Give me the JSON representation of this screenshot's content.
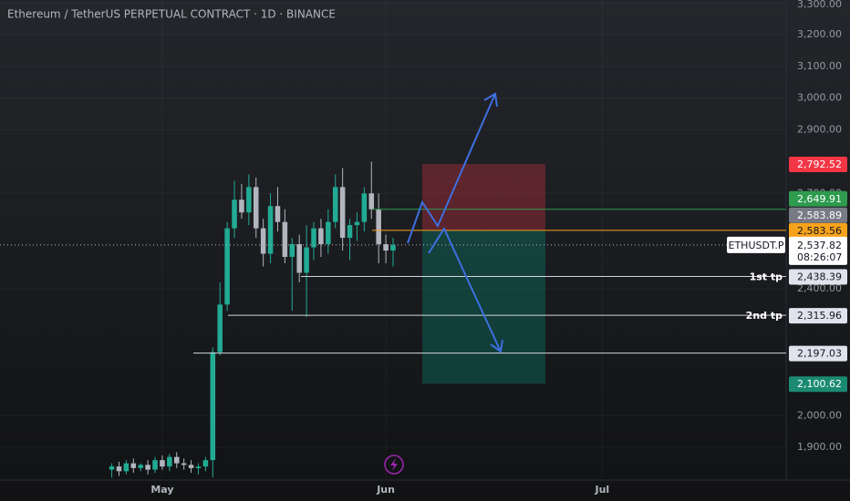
{
  "chart_data": {
    "type": "candlestick",
    "title": "Ethereum / TetherUS PERPETUAL CONTRACT · 1D · BINANCE",
    "categories": [
      null,
      null,
      null,
      null,
      null,
      null,
      null,
      null,
      null,
      null,
      null,
      null,
      null,
      null,
      null,
      null,
      null,
      null,
      null,
      null,
      null,
      null,
      "May",
      null,
      null,
      null,
      null,
      null,
      null,
      null,
      null,
      null,
      null,
      null,
      null,
      null,
      null,
      null,
      null,
      null,
      null,
      null,
      null,
      null,
      null,
      null,
      null,
      null,
      null,
      null,
      null,
      null,
      null,
      "Jun",
      null,
      null,
      null,
      null,
      null,
      null,
      null,
      null,
      null,
      null,
      null,
      null,
      null,
      null,
      null,
      null,
      null,
      null,
      null,
      null,
      null,
      null,
      null,
      null,
      null,
      null,
      null,
      null,
      null,
      "Jul",
      null,
      null,
      null,
      null,
      null,
      null,
      null,
      null,
      null,
      null,
      null,
      null,
      null,
      null,
      null,
      null,
      null,
      null,
      null,
      null,
      null,
      null,
      null,
      null,
      null
    ],
    "open": [
      null,
      null,
      null,
      null,
      null,
      null,
      null,
      null,
      null,
      null,
      null,
      null,
      null,
      null,
      null,
      1830,
      1840,
      1825,
      1850,
      1835,
      1845,
      1830,
      1860,
      1840,
      1870,
      1850,
      1845,
      1835,
      1840,
      1860,
      2200,
      2350,
      2590,
      2680,
      2640,
      2720,
      2590,
      2510,
      2660,
      2610,
      2500,
      2540,
      2450,
      2530,
      2590,
      2540,
      2610,
      2720,
      2560,
      2600,
      2610,
      2700,
      2650,
      2540,
      2520,
      null,
      null,
      null,
      null,
      null,
      null,
      null,
      null,
      null,
      null,
      null,
      null,
      null,
      null,
      null,
      null,
      null,
      null,
      null,
      null,
      null,
      null,
      null,
      null,
      null,
      null,
      null,
      null,
      null,
      null,
      null,
      null,
      null,
      null,
      null,
      null,
      null,
      null,
      null,
      null,
      null,
      null,
      null,
      null,
      null,
      null,
      null,
      null,
      null,
      null,
      null,
      null,
      null,
      null
    ],
    "high": [
      null,
      null,
      null,
      null,
      null,
      null,
      null,
      null,
      null,
      null,
      null,
      null,
      null,
      null,
      null,
      1850,
      1855,
      1860,
      1865,
      1850,
      1860,
      1870,
      1875,
      1880,
      1885,
      1865,
      1860,
      1850,
      1870,
      2215,
      2420,
      2610,
      2740,
      2730,
      2760,
      2750,
      2620,
      2700,
      2720,
      2650,
      2560,
      2570,
      2600,
      2610,
      2620,
      2650,
      2760,
      2780,
      2620,
      2640,
      2720,
      2800,
      2700,
      2570,
      2560,
      null,
      null,
      null,
      null,
      null,
      null,
      null,
      null,
      null,
      null,
      null,
      null,
      null,
      null,
      null,
      null,
      null,
      null,
      null,
      null,
      null,
      null,
      null,
      null,
      null,
      null,
      null,
      null,
      null,
      null,
      null,
      null,
      null,
      null,
      null,
      null,
      null,
      null,
      null,
      null,
      null,
      null,
      null,
      null,
      null,
      null,
      null,
      null,
      null,
      null,
      null,
      null,
      null,
      null
    ],
    "low": [
      null,
      null,
      null,
      null,
      null,
      null,
      null,
      null,
      null,
      null,
      null,
      null,
      null,
      null,
      null,
      1805,
      1810,
      1815,
      1820,
      1825,
      1815,
      1820,
      1830,
      1825,
      1835,
      1830,
      1820,
      1815,
      1825,
      1805,
      2190,
      2330,
      2560,
      2620,
      2600,
      2560,
      2470,
      2480,
      2580,
      2480,
      2330,
      2420,
      2310,
      2490,
      2500,
      2510,
      2590,
      2520,
      2490,
      2550,
      2580,
      2620,
      2480,
      2480,
      2470,
      null,
      null,
      null,
      null,
      null,
      null,
      null,
      null,
      null,
      null,
      null,
      null,
      null,
      null,
      null,
      null,
      null,
      null,
      null,
      null,
      null,
      null,
      null,
      null,
      null,
      null,
      null,
      null,
      null,
      null,
      null,
      null,
      null,
      null,
      null,
      null,
      null,
      null,
      null,
      null,
      null,
      null,
      null,
      null,
      null,
      null,
      null,
      null,
      null,
      null,
      null,
      null,
      null,
      null
    ],
    "close": [
      null,
      null,
      null,
      null,
      null,
      null,
      null,
      null,
      null,
      null,
      null,
      null,
      null,
      null,
      null,
      1840,
      1825,
      1850,
      1835,
      1845,
      1830,
      1860,
      1840,
      1870,
      1850,
      1845,
      1835,
      1840,
      1860,
      2200,
      2350,
      2590,
      2680,
      2640,
      2720,
      2590,
      2510,
      2660,
      2610,
      2500,
      2540,
      2450,
      2530,
      2590,
      2540,
      2610,
      2720,
      2560,
      2600,
      2610,
      2700,
      2650,
      2540,
      2520,
      2537.82,
      null,
      null,
      null,
      null,
      null,
      null,
      null,
      null,
      null,
      null,
      null,
      null,
      null,
      null,
      null,
      null,
      null,
      null,
      null,
      null,
      null,
      null,
      null,
      null,
      null,
      null,
      null,
      null,
      null,
      null,
      null,
      null,
      null,
      null,
      null,
      null,
      null,
      null,
      null,
      null,
      null,
      null,
      null,
      null,
      null,
      null,
      null,
      null,
      null,
      null,
      null,
      null,
      null,
      null
    ],
    "up_color": "#22ab94",
    "down_color": "#b2b5be",
    "ylim": [
      1803,
      3309
    ],
    "yticks": [
      {
        "value": 3300,
        "label": "3,300.00"
      },
      {
        "value": 3200,
        "label": "3,200.00"
      },
      {
        "value": 3100,
        "label": "3,100.00"
      },
      {
        "value": 3000,
        "label": "3,000.00"
      },
      {
        "value": 2900,
        "label": "2,900.00"
      },
      {
        "value": 2700,
        "label": "2,700.00"
      },
      {
        "value": 2400,
        "label": "2,400.00"
      },
      {
        "value": 2000,
        "label": "2,000.00"
      },
      {
        "value": 1900,
        "label": "1,900.00"
      }
    ],
    "grid": true,
    "price_levels": [
      {
        "price": {
          "value": 2792.52,
          "label": "2,792.52"
        },
        "color": "#f23645"
      },
      {
        "price": {
          "value": 2649.91,
          "label": "2,649.91"
        },
        "color": "#2e9b4f"
      },
      {
        "price": {
          "value": 2583.89,
          "label": "2,583.89"
        },
        "color": "#787b86"
      },
      {
        "price": {
          "value": 2583.56,
          "label": "2,583.56"
        },
        "color": "#f7a21b"
      },
      {
        "price": {
          "value": 2438.39,
          "label": "2,438.39"
        },
        "color": "#e0e3eb",
        "note": "1st tp"
      },
      {
        "price": {
          "value": 2315.96,
          "label": "2,315.96"
        },
        "color": "#e0e3eb",
        "note": "2nd tp"
      },
      {
        "price": {
          "value": 2197.03,
          "label": "2,197.03"
        },
        "color": "#e0e3eb"
      },
      {
        "price": {
          "value": 2100.62,
          "label": "2,100.62"
        },
        "color": "#1b8a72"
      }
    ],
    "current": {
      "symbol": "ETHUSDT.P",
      "price": {
        "value": 2537.82,
        "label": "2,537.82"
      },
      "countdown": "08:26:07"
    }
  }
}
